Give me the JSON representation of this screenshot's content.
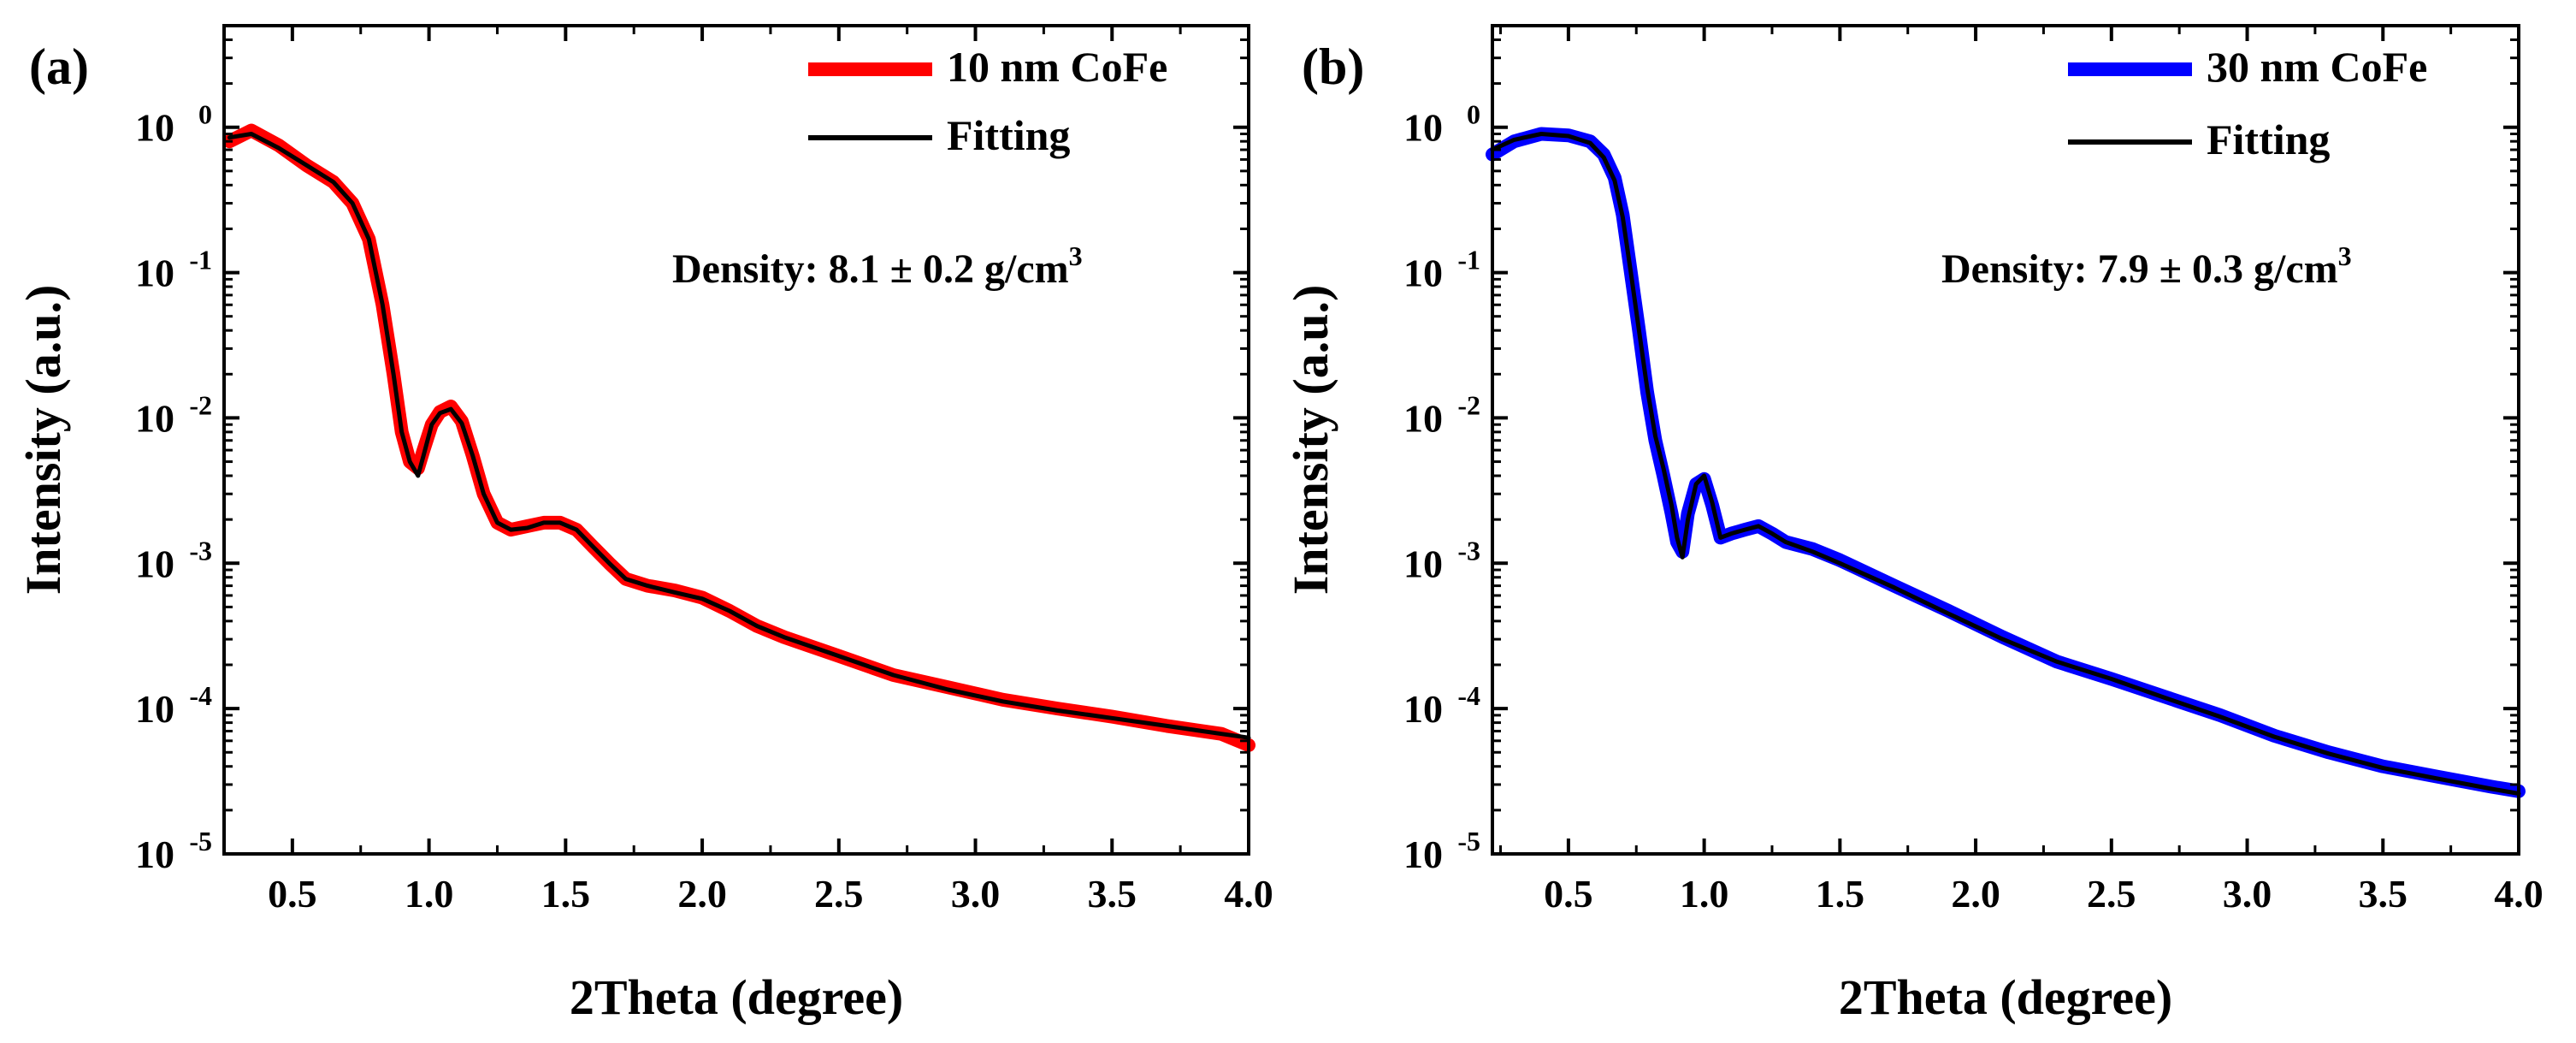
{
  "chart_data": [
    {
      "type": "line",
      "panel_label": "(a)",
      "xlabel": "2Theta (degree)",
      "ylabel": "Intensity (a.u.)",
      "xlim": [
        0.25,
        4.0
      ],
      "ylim": [
        1e-05,
        5
      ],
      "yscale": "log",
      "xticks": [
        0.5,
        1.0,
        1.5,
        2.0,
        2.5,
        3.0,
        3.5,
        4.0
      ],
      "xtick_labels": [
        "0.5",
        "1.0",
        "1.5",
        "2.0",
        "2.5",
        "3.0",
        "3.5",
        "4.0"
      ],
      "yticks": [
        {
          "value": 1e-05,
          "base": "10",
          "exp": "-5"
        },
        {
          "value": 0.0001,
          "base": "10",
          "exp": "-4"
        },
        {
          "value": 0.001,
          "base": "10",
          "exp": "-3"
        },
        {
          "value": 0.01,
          "base": "10",
          "exp": "-2"
        },
        {
          "value": 0.1,
          "base": "10",
          "exp": "-1"
        },
        {
          "value": 1,
          "base": "10",
          "exp": "0"
        }
      ],
      "annotation": {
        "text": "Density: 8.1 ± 0.2 g/cm",
        "sup": "3"
      },
      "legend_position": "top-right",
      "series": [
        {
          "name": "10 nm CoFe",
          "color": "#ff0000",
          "style": "data",
          "x": [
            0.27,
            0.35,
            0.45,
            0.55,
            0.65,
            0.72,
            0.78,
            0.83,
            0.87,
            0.9,
            0.93,
            0.96,
            0.98,
            1.01,
            1.04,
            1.08,
            1.12,
            1.16,
            1.2,
            1.25,
            1.3,
            1.36,
            1.42,
            1.48,
            1.54,
            1.6,
            1.66,
            1.72,
            1.8,
            1.9,
            2.0,
            2.1,
            2.2,
            2.3,
            2.5,
            2.7,
            2.9,
            3.1,
            3.3,
            3.5,
            3.7,
            3.9,
            4.0
          ],
          "y": [
            0.8,
            0.95,
            0.75,
            0.55,
            0.42,
            0.3,
            0.17,
            0.06,
            0.02,
            0.008,
            0.005,
            0.0045,
            0.006,
            0.009,
            0.011,
            0.012,
            0.0095,
            0.0055,
            0.003,
            0.0019,
            0.0017,
            0.0018,
            0.0019,
            0.0019,
            0.0017,
            0.0013,
            0.001,
            0.00078,
            0.0007,
            0.00065,
            0.00058,
            0.00047,
            0.00037,
            0.00031,
            0.00023,
            0.00017,
            0.00014,
            0.000115,
            0.0001,
            8.8e-05,
            7.6e-05,
            6.7e-05,
            5.6e-05
          ]
        },
        {
          "name": "Fitting",
          "color": "#000000",
          "style": "line",
          "x": [
            0.27,
            0.35,
            0.45,
            0.55,
            0.65,
            0.72,
            0.78,
            0.83,
            0.87,
            0.9,
            0.93,
            0.96,
            0.98,
            1.01,
            1.04,
            1.08,
            1.12,
            1.16,
            1.2,
            1.25,
            1.3,
            1.36,
            1.42,
            1.48,
            1.54,
            1.6,
            1.66,
            1.72,
            1.8,
            1.9,
            2.0,
            2.1,
            2.2,
            2.3,
            2.5,
            2.7,
            2.9,
            3.1,
            3.3,
            3.5,
            3.7,
            3.9,
            4.0
          ],
          "y": [
            0.85,
            0.9,
            0.72,
            0.55,
            0.42,
            0.3,
            0.17,
            0.06,
            0.02,
            0.008,
            0.005,
            0.004,
            0.0055,
            0.009,
            0.0108,
            0.0115,
            0.0092,
            0.0055,
            0.003,
            0.0019,
            0.0017,
            0.00175,
            0.0019,
            0.0019,
            0.0017,
            0.0013,
            0.001,
            0.00078,
            0.0007,
            0.00063,
            0.00057,
            0.00047,
            0.00037,
            0.00031,
            0.00023,
            0.00017,
            0.000135,
            0.000112,
            9.7e-05,
            8.6e-05,
            7.6e-05,
            6.7e-05,
            6.3e-05
          ]
        }
      ]
    },
    {
      "type": "line",
      "panel_label": "(b)",
      "xlabel": "2Theta (degree)",
      "ylabel": "Intensity (a.u.)",
      "xlim": [
        0.22,
        4.0
      ],
      "ylim": [
        1e-05,
        5
      ],
      "yscale": "log",
      "xticks": [
        0.5,
        1.0,
        1.5,
        2.0,
        2.5,
        3.0,
        3.5,
        4.0
      ],
      "xtick_labels": [
        "0.5",
        "1.0",
        "1.5",
        "2.0",
        "2.5",
        "3.0",
        "3.5",
        "4.0"
      ],
      "yticks": [
        {
          "value": 1e-05,
          "base": "10",
          "exp": "-5"
        },
        {
          "value": 0.0001,
          "base": "10",
          "exp": "-4"
        },
        {
          "value": 0.001,
          "base": "10",
          "exp": "-3"
        },
        {
          "value": 0.01,
          "base": "10",
          "exp": "-2"
        },
        {
          "value": 0.1,
          "base": "10",
          "exp": "-1"
        },
        {
          "value": 1,
          "base": "10",
          "exp": "0"
        }
      ],
      "annotation": {
        "text": "Density: 7.9 ± 0.3 g/cm",
        "sup": "3"
      },
      "legend_position": "top-right",
      "series": [
        {
          "name": "30 nm CoFe",
          "color": "#0000ff",
          "style": "data",
          "x": [
            0.22,
            0.3,
            0.4,
            0.5,
            0.58,
            0.63,
            0.67,
            0.7,
            0.73,
            0.76,
            0.79,
            0.82,
            0.85,
            0.88,
            0.9,
            0.92,
            0.94,
            0.97,
            1.0,
            1.03,
            1.06,
            1.1,
            1.15,
            1.2,
            1.25,
            1.3,
            1.4,
            1.5,
            1.7,
            1.9,
            2.1,
            2.3,
            2.5,
            2.7,
            2.9,
            3.1,
            3.3,
            3.5,
            3.7,
            3.9,
            4.0
          ],
          "y": [
            0.65,
            0.8,
            0.9,
            0.88,
            0.8,
            0.65,
            0.45,
            0.25,
            0.1,
            0.04,
            0.015,
            0.007,
            0.004,
            0.0022,
            0.0014,
            0.0012,
            0.0022,
            0.0035,
            0.0038,
            0.0025,
            0.0015,
            0.0016,
            0.0017,
            0.0018,
            0.0016,
            0.0014,
            0.00125,
            0.00105,
            0.0007,
            0.00047,
            0.00031,
            0.00021,
            0.00016,
            0.00012,
            9e-05,
            6.5e-05,
            5e-05,
            4e-05,
            3.4e-05,
            2.9e-05,
            2.7e-05
          ]
        },
        {
          "name": "Fitting",
          "color": "#000000",
          "style": "line",
          "x": [
            0.22,
            0.3,
            0.4,
            0.5,
            0.58,
            0.63,
            0.67,
            0.7,
            0.73,
            0.76,
            0.79,
            0.82,
            0.85,
            0.88,
            0.9,
            0.92,
            0.94,
            0.97,
            1.0,
            1.03,
            1.06,
            1.1,
            1.15,
            1.2,
            1.25,
            1.3,
            1.4,
            1.5,
            1.7,
            1.9,
            2.1,
            2.3,
            2.5,
            2.7,
            2.9,
            3.1,
            3.3,
            3.5,
            3.7,
            3.9,
            4.0
          ],
          "y": [
            0.7,
            0.82,
            0.9,
            0.87,
            0.78,
            0.62,
            0.43,
            0.24,
            0.1,
            0.04,
            0.016,
            0.0075,
            0.0045,
            0.0025,
            0.0015,
            0.0011,
            0.002,
            0.0035,
            0.004,
            0.0026,
            0.0015,
            0.0016,
            0.0017,
            0.0018,
            0.0016,
            0.0014,
            0.0012,
            0.001,
            0.00068,
            0.00045,
            0.0003,
            0.00021,
            0.00016,
            0.000118,
            8.8e-05,
            6.4e-05,
            4.9e-05,
            3.9e-05,
            3.3e-05,
            2.8e-05,
            2.6e-05
          ]
        }
      ]
    }
  ]
}
